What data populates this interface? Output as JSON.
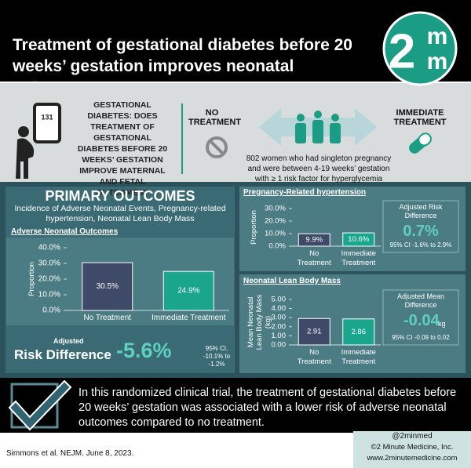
{
  "header": {
    "title": "Treatment of gestational diabetes before 20 weeks’ gestation improves neonatal outcomes"
  },
  "logo": {
    "number": "2",
    "letters": [
      "m",
      "m"
    ]
  },
  "question": {
    "device_reading": "131",
    "text": "GESTATIONAL DIABETES: DOES TREATMENT OF GESTATIONAL DIABETES BEFORE 20 WEEKS’ GESTATION IMPROVE MATERNAL AND FETAL OUTCOMES?"
  },
  "arms": {
    "control": "NO TREATMENT",
    "intervention": "IMMEDIATE TREATMENT",
    "population": "802 women who had singleton pregnancy and were between 4-19 weeks’ gestation with ≥ 1 risk factor for hyperglycemia"
  },
  "primary": {
    "title": "PRIMARY OUTCOMES",
    "subtitle": "Incidence of Adverse Neonatal Events, Pregnancy-related hypertension, Neonatal Lean Body Mass",
    "adjusted": "Adjusted",
    "measure": "Risk Difference",
    "value": "-5.6%",
    "ci": "95% CI, -10.1% to -1.2%"
  },
  "chart_data": [
    {
      "type": "bar",
      "title": "Adverse Neonatal Outcomes",
      "y_label": "Proportion",
      "categories": [
        "No Treatment",
        "Immediate Treatment"
      ],
      "values": [
        30.5,
        24.9
      ],
      "value_labels": [
        "30.5%",
        "24.9%"
      ],
      "colors": [
        "#3e4a68",
        "#19a68d"
      ],
      "ylim": [
        0,
        40
      ],
      "yticks": [
        {
          "value": 0,
          "label": "0.0%"
        },
        {
          "value": 10,
          "label": "10.0%"
        },
        {
          "value": 20,
          "label": "20.0%"
        },
        {
          "value": 30,
          "label": "30.0%"
        },
        {
          "value": 40,
          "label": "40.0%"
        }
      ]
    },
    {
      "type": "bar",
      "title": "Pregnancy-Related hypertension",
      "y_label": "Proportion",
      "categories": [
        "No Treatment",
        "Immediate Treatment"
      ],
      "values": [
        9.9,
        10.6
      ],
      "value_labels": [
        "9.9%",
        "10.6%"
      ],
      "colors": [
        "#3e4a68",
        "#19a68d"
      ],
      "ylim": [
        0,
        30
      ],
      "yticks": [
        {
          "value": 0,
          "label": "0.0%"
        },
        {
          "value": 10,
          "label": "10.0%"
        },
        {
          "value": 20,
          "label": "20.0%"
        },
        {
          "value": 30,
          "label": "30.0%"
        }
      ],
      "annotation": {
        "title": "Adjusted Risk Difference",
        "value": "0.7%",
        "ci": "95% CI -1.6% to 2.9%"
      }
    },
    {
      "type": "bar",
      "title": "Neonatal Lean Body Mass",
      "y_label": "Mean Neonatal Lean Body Mass (kg)",
      "categories": [
        "No Treatment",
        "Immediate Treatment"
      ],
      "values": [
        2.91,
        2.86
      ],
      "colors": [
        "#3e4a68",
        "#19a68d"
      ],
      "ylim": [
        0,
        5
      ],
      "yticks": [
        {
          "value": 0,
          "label": "0.00"
        },
        {
          "value": 1,
          "label": "1.00"
        },
        {
          "value": 2,
          "label": "2.00"
        },
        {
          "value": 3,
          "label": "3.00"
        },
        {
          "value": 4,
          "label": "4.00"
        },
        {
          "value": 5,
          "label": "5.00"
        }
      ],
      "annotation": {
        "title": "Adjusted Mean Difference",
        "value": "-0.04",
        "unit": "kg",
        "ci": "95% CI -0.09 to 0.02"
      }
    }
  ],
  "conclusion": "In this randomized clinical trial, the treatment of gestational diabetes before 20 weeks’ gestation was associated with a lower risk of adverse neonatal outcomes compared to no treatment.",
  "footer": {
    "citation": "Simmons et al. NEJM. June 8, 2023.",
    "handle": "@2minmed",
    "copyright": "©2 Minute Medicine, Inc.",
    "website": "www.2minutemedicine.com"
  }
}
